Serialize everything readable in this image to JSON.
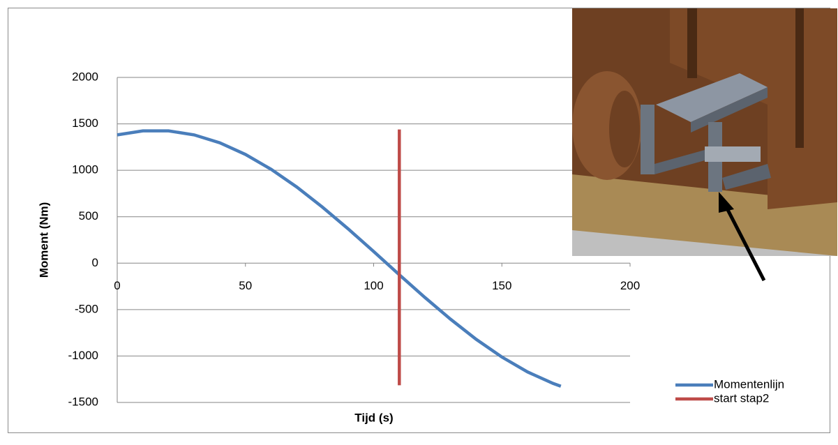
{
  "chart_data": {
    "type": "line",
    "x_label": "Tijd (s)",
    "y_label": "Moment (Nm)",
    "xlim": [
      0,
      200
    ],
    "xticks": [
      0,
      50,
      100,
      150,
      200
    ],
    "ylim": [
      -1500,
      2000
    ],
    "yticks": [
      -1500,
      -1000,
      -500,
      0,
      500,
      1000,
      1500,
      2000
    ],
    "grid": true,
    "legend": "lower right",
    "series": [
      {
        "name": "Momentenlijn",
        "color": "#4a7ebb",
        "x": [
          0,
          10,
          20,
          30,
          40,
          50,
          60,
          70,
          80,
          90,
          100,
          110,
          120,
          130,
          140,
          150,
          160,
          170,
          173
        ],
        "values": [
          1381,
          1425,
          1425,
          1381,
          1296,
          1171,
          1011,
          820,
          604,
          370,
          125,
          -125,
          -370,
          -604,
          -820,
          -1011,
          -1171,
          -1296,
          -1326
        ]
      },
      {
        "name": "start stap2",
        "color": "#be4b48",
        "x": [
          110,
          110
        ],
        "values": [
          1440,
          -1315
        ]
      }
    ]
  }
}
